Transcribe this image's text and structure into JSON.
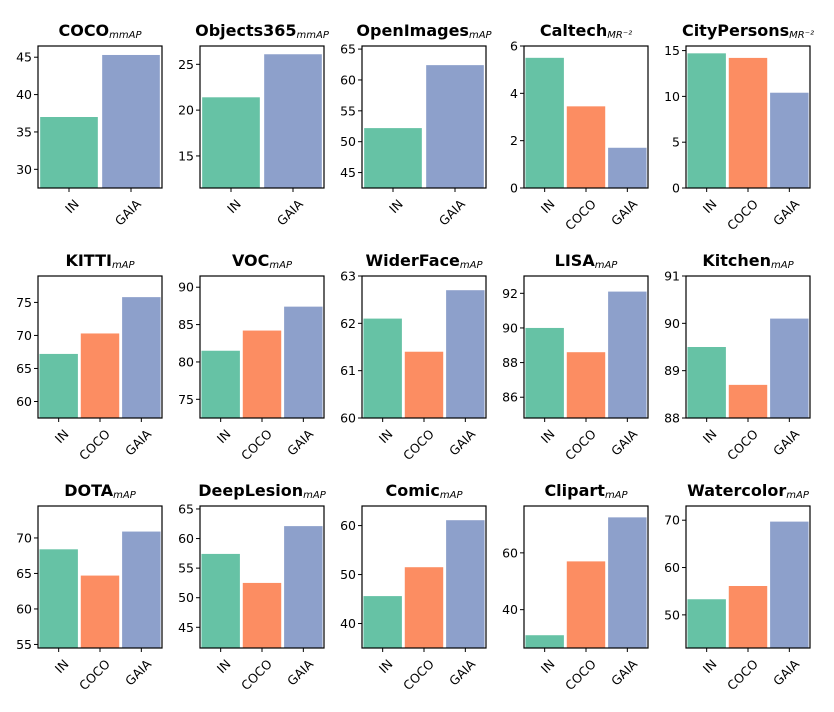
{
  "colors": {
    "IN": "#66c2a5",
    "COCO": "#fc8d62",
    "GAIA": "#8da0cb"
  },
  "chart_data": [
    {
      "type": "bar",
      "title": "COCO",
      "subscript": "mmAP",
      "categories": [
        "IN",
        "GAIA"
      ],
      "values": [
        37.0,
        45.3
      ],
      "ylim": [
        27.5,
        46.5
      ],
      "yticks": [
        30,
        35,
        40,
        45
      ]
    },
    {
      "type": "bar",
      "title": "Objects365",
      "subscript": "mmAP",
      "categories": [
        "IN",
        "GAIA"
      ],
      "values": [
        21.4,
        26.1
      ],
      "ylim": [
        11.5,
        27.0
      ],
      "yticks": [
        15,
        20,
        25
      ]
    },
    {
      "type": "bar",
      "title": "OpenImages",
      "subscript": "mAP",
      "categories": [
        "IN",
        "GAIA"
      ],
      "values": [
        52.2,
        62.4
      ],
      "ylim": [
        42.5,
        65.5
      ],
      "yticks": [
        45,
        50,
        55,
        60,
        65
      ]
    },
    {
      "type": "bar",
      "title": "Caltech",
      "subscript": "MR⁻²",
      "categories": [
        "IN",
        "COCO",
        "GAIA"
      ],
      "values": [
        5.5,
        3.45,
        1.7
      ],
      "ylim": [
        0,
        6.0
      ],
      "yticks": [
        0,
        2,
        4,
        6
      ]
    },
    {
      "type": "bar",
      "title": "CityPersons",
      "subscript": "MR⁻²",
      "categories": [
        "IN",
        "COCO",
        "GAIA"
      ],
      "values": [
        14.7,
        14.2,
        10.4
      ],
      "ylim": [
        0,
        15.5
      ],
      "yticks": [
        0,
        5,
        10,
        15
      ]
    },
    {
      "type": "bar",
      "title": "KITTI",
      "subscript": "mAP",
      "categories": [
        "IN",
        "COCO",
        "GAIA"
      ],
      "values": [
        67.2,
        70.3,
        75.8
      ],
      "ylim": [
        57.5,
        79.0
      ],
      "yticks": [
        60,
        65,
        70,
        75
      ]
    },
    {
      "type": "bar",
      "title": "VOC",
      "subscript": "mAP",
      "categories": [
        "IN",
        "COCO",
        "GAIA"
      ],
      "values": [
        81.5,
        84.2,
        87.4
      ],
      "ylim": [
        72.5,
        91.5
      ],
      "yticks": [
        75,
        80,
        85,
        90
      ]
    },
    {
      "type": "bar",
      "title": "WiderFace",
      "subscript": "mAP",
      "categories": [
        "IN",
        "COCO",
        "GAIA"
      ],
      "values": [
        62.1,
        61.4,
        62.7
      ],
      "ylim": [
        60.0,
        63.0
      ],
      "yticks": [
        60,
        61,
        62,
        63
      ]
    },
    {
      "type": "bar",
      "title": "LISA",
      "subscript": "mAP",
      "categories": [
        "IN",
        "COCO",
        "GAIA"
      ],
      "values": [
        90.0,
        88.6,
        92.1
      ],
      "ylim": [
        84.8,
        93.0
      ],
      "yticks": [
        86,
        88,
        90,
        92
      ]
    },
    {
      "type": "bar",
      "title": "Kitchen",
      "subscript": "mAP",
      "categories": [
        "IN",
        "COCO",
        "GAIA"
      ],
      "values": [
        89.5,
        88.7,
        90.1
      ],
      "ylim": [
        88.0,
        91.0
      ],
      "yticks": [
        88,
        89,
        90,
        91
      ]
    },
    {
      "type": "bar",
      "title": "DOTA",
      "subscript": "mAP",
      "categories": [
        "IN",
        "COCO",
        "GAIA"
      ],
      "values": [
        68.4,
        64.7,
        70.9
      ],
      "ylim": [
        54.5,
        74.5
      ],
      "yticks": [
        55,
        60,
        65,
        70
      ]
    },
    {
      "type": "bar",
      "title": "DeepLesion",
      "subscript": "mAP",
      "categories": [
        "IN",
        "COCO",
        "GAIA"
      ],
      "values": [
        57.4,
        52.5,
        62.1
      ],
      "ylim": [
        41.5,
        65.5
      ],
      "yticks": [
        45,
        50,
        55,
        60,
        65
      ]
    },
    {
      "type": "bar",
      "title": "Comic",
      "subscript": "mAP",
      "categories": [
        "IN",
        "COCO",
        "GAIA"
      ],
      "values": [
        45.6,
        51.5,
        61.1
      ],
      "ylim": [
        35.0,
        64.0
      ],
      "yticks": [
        40,
        50,
        60
      ]
    },
    {
      "type": "bar",
      "title": "Clipart",
      "subscript": "mAP",
      "categories": [
        "IN",
        "COCO",
        "GAIA"
      ],
      "values": [
        31.0,
        57.0,
        72.5
      ],
      "ylim": [
        26.5,
        76.5
      ],
      "yticks": [
        40,
        60
      ]
    },
    {
      "type": "bar",
      "title": "Watercolor",
      "subscript": "mAP",
      "categories": [
        "IN",
        "COCO",
        "GAIA"
      ],
      "values": [
        53.3,
        56.1,
        69.7
      ],
      "ylim": [
        43.0,
        73.0
      ],
      "yticks": [
        50,
        60,
        70
      ]
    }
  ]
}
